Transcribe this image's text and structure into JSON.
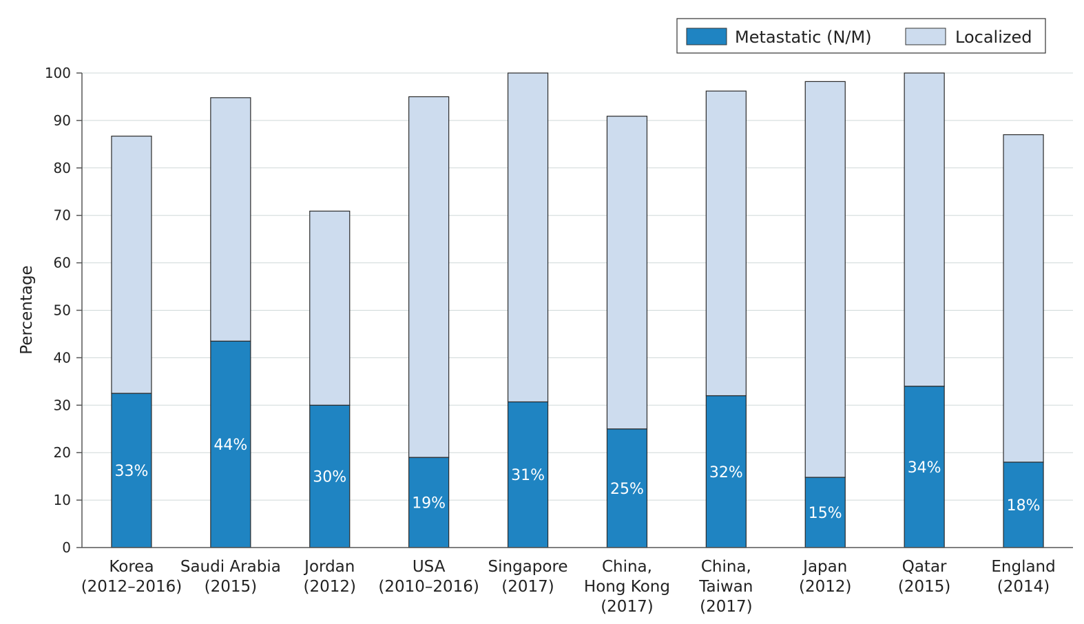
{
  "chart_data": {
    "type": "bar",
    "stacked": true,
    "categories": [
      [
        "Korea",
        "(2012–2016)"
      ],
      [
        "Saudi Arabia",
        "(2015)"
      ],
      [
        "Jordan",
        "(2012)"
      ],
      [
        "USA",
        "(2010–2016)"
      ],
      [
        "Singapore",
        "(2017)"
      ],
      [
        "China,",
        "Hong Kong",
        "(2017)"
      ],
      [
        "China,",
        "Taiwan",
        "(2017)"
      ],
      [
        "Japan",
        "(2012)"
      ],
      [
        "Qatar",
        "(2015)"
      ],
      [
        "England",
        "(2014)"
      ]
    ],
    "series": [
      {
        "name": "Metastatic (N/M)",
        "color": "#1f84c2",
        "values": [
          32.5,
          43.5,
          30,
          19,
          30.7,
          25,
          32,
          14.8,
          34,
          18
        ],
        "labels": [
          "33%",
          "44%",
          "30%",
          "19%",
          "31%",
          "25%",
          "32%",
          "15%",
          "34%",
          "18%"
        ]
      },
      {
        "name": "Localized",
        "color": "#cddcee",
        "values": [
          54.2,
          51.3,
          40.9,
          76,
          69.3,
          65.9,
          64.2,
          83.4,
          66,
          69
        ]
      }
    ],
    "ylabel": "Percentage",
    "xlabel": "",
    "ylim": [
      0,
      100
    ],
    "yticks": [
      0,
      10,
      20,
      30,
      40,
      50,
      60,
      70,
      80,
      90,
      100
    ],
    "grid": true,
    "legend_position": "top-right"
  }
}
